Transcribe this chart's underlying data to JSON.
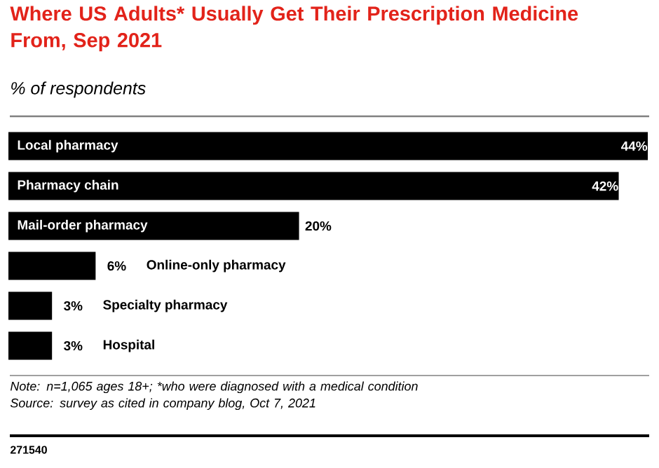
{
  "chart_data": {
    "type": "bar",
    "orientation": "horizontal",
    "title": "Where US Adults* Usually Get Their Prescription Medicine From, Sep 2021",
    "subtitle": "% of respondents",
    "categories": [
      "Local pharmacy",
      "Pharmacy chain",
      "Mail-order pharmacy",
      "Online-only pharmacy",
      "Specialty pharmacy",
      "Hospital"
    ],
    "values": [
      44,
      42,
      20,
      6,
      3,
      3
    ],
    "value_labels": [
      "44%",
      "42%",
      "20%",
      "6%",
      "3%",
      "3%"
    ],
    "color": "#000000",
    "annotations": [
      "Note: n=1,065 ages 18+; *who were diagnosed with a medical condition",
      "Source: survey as cited in company blog, Oct 7, 2021",
      "271540"
    ]
  }
}
